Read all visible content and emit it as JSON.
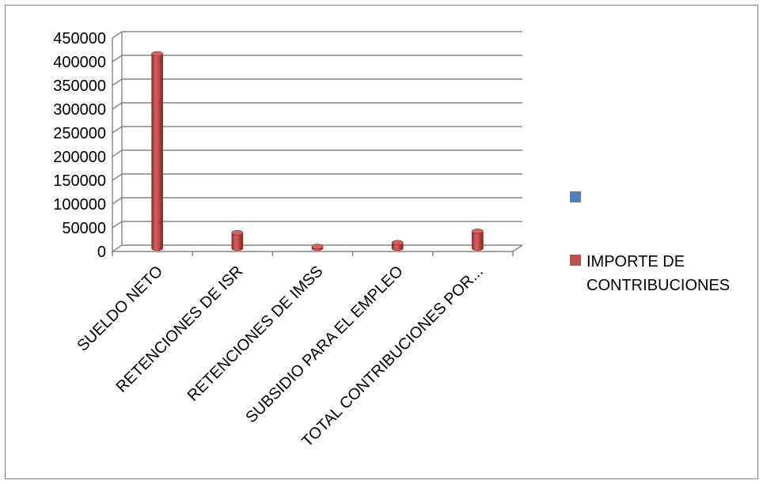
{
  "chart_data": {
    "type": "bar",
    "style": "3d-cylinder",
    "categories": [
      "SUELDO NETO",
      "RETENCIONES DE ISR",
      "RETENCIONES DE IMSS",
      "SUBSIDIO PARA EL EMPLEO",
      "TOTAL CONTRIBUCIONES POR..."
    ],
    "series": [
      {
        "name": "",
        "color": "#4f81bd",
        "values": [
          0,
          0,
          0,
          0,
          0
        ]
      },
      {
        "name": "IMPORTE DE CONTRIBUCIONES",
        "color": "#c0504d",
        "values": [
          410000,
          33000,
          4000,
          12000,
          36000
        ]
      }
    ],
    "y_ticks": [
      "450000",
      "400000",
      "350000",
      "300000",
      "250000",
      "200000",
      "150000",
      "100000",
      "50000",
      "0"
    ],
    "ylim": [
      0,
      450000
    ],
    "grid": true,
    "legend_position": "right",
    "title": "",
    "xlabel": "",
    "ylabel": ""
  }
}
